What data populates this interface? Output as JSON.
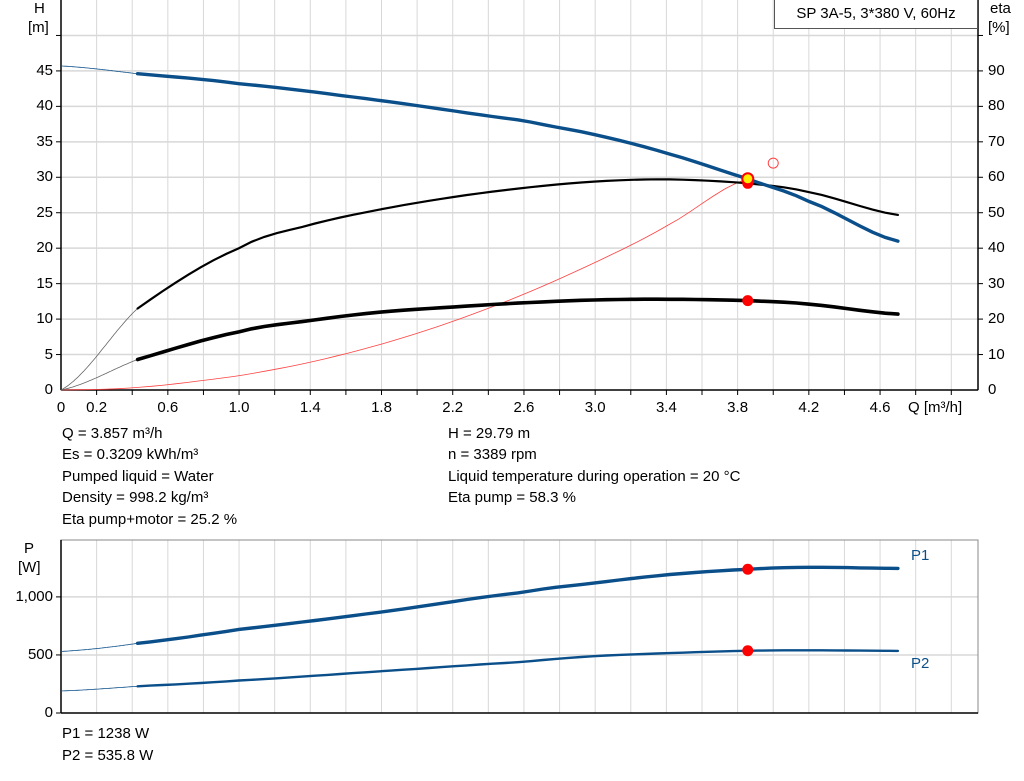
{
  "legend_label": "SP 3A-5, 3*380 V, 60Hz",
  "chart_data": [
    {
      "type": "line",
      "title": "",
      "xlabel": "Q [m³/h]",
      "ylabel_left": "H",
      "ylabel_left_unit": "[m]",
      "ylabel_right": "eta",
      "ylabel_right_unit": "[%]",
      "xlim": [
        0,
        5.15
      ],
      "ylim_left": [
        0,
        55
      ],
      "ylim_right": [
        0,
        110
      ],
      "grid": true,
      "x_tick_labels": [
        "0",
        "0.2",
        "0.6",
        "1.0",
        "1.4",
        "1.8",
        "2.2",
        "2.6",
        "3.0",
        "3.4",
        "3.8",
        "4.2",
        "4.6"
      ],
      "y_left_tick_labels": [
        "0",
        "5",
        "10",
        "15",
        "20",
        "25",
        "30",
        "35",
        "40",
        "45"
      ],
      "y_right_tick_labels": [
        "0",
        "10",
        "20",
        "30",
        "40",
        "50",
        "60",
        "70",
        "80",
        "90"
      ],
      "series": [
        {
          "id": "H",
          "axis": "left",
          "color": "#0b4f8a",
          "x": [
            0,
            0.43,
            1.0,
            1.8,
            2.6,
            3.0,
            3.4,
            3.857,
            4.2,
            4.7
          ],
          "y": [
            45.7,
            44.6,
            43.2,
            40.8,
            38.0,
            36.0,
            33.4,
            29.79,
            26.6,
            21.0
          ]
        },
        {
          "id": "eta_pump",
          "axis": "right",
          "color": "#000000",
          "x": [
            0,
            0.43,
            1.0,
            1.4,
            1.8,
            2.2,
            2.6,
            3.0,
            3.4,
            3.857,
            4.2,
            4.7
          ],
          "y": [
            0,
            23,
            40,
            46.6,
            51,
            54.4,
            57,
            58.8,
            59.4,
            58.3,
            55.8,
            49.4
          ]
        },
        {
          "id": "eta_total",
          "axis": "right",
          "color": "#000000",
          "x": [
            0,
            0.43,
            1.0,
            1.4,
            1.8,
            2.2,
            2.6,
            3.0,
            3.4,
            3.857,
            4.2,
            4.7
          ],
          "y": [
            0,
            8.6,
            16.4,
            19.6,
            22,
            23.4,
            24.6,
            25.4,
            25.6,
            25.2,
            24.2,
            21.4
          ]
        },
        {
          "id": "system",
          "axis": "left",
          "color": "#ff4040",
          "x": [
            0,
            0.43,
            1.0,
            1.4,
            1.8,
            2.2,
            2.6,
            3.0,
            3.4,
            3.857
          ],
          "y": [
            0,
            0.37,
            2.0,
            3.92,
            6.48,
            9.68,
            13.52,
            18.0,
            23.12,
            29.79
          ]
        }
      ],
      "duty_point": {
        "Q": 3.857,
        "H": 29.79,
        "eta_pump": 58.3,
        "eta_total": 25.2
      },
      "requested_point": {
        "Q": 4.0,
        "H": 32.0
      }
    },
    {
      "type": "line",
      "title": "",
      "ylabel": "P",
      "ylabel_unit": "[W]",
      "xlim": [
        0,
        5.15
      ],
      "ylim": [
        0,
        1490
      ],
      "grid": true,
      "y_tick_labels": [
        "0",
        "500",
        "1,000"
      ],
      "series": [
        {
          "name": "P1",
          "color": "#0b4f8a",
          "x": [
            0,
            0.43,
            1.0,
            1.8,
            2.6,
            3.0,
            3.4,
            3.857,
            4.2,
            4.7
          ],
          "y": [
            530,
            600,
            720,
            870,
            1040,
            1120,
            1190,
            1238,
            1255,
            1245
          ]
        },
        {
          "name": "P2",
          "color": "#0b4f8a",
          "x": [
            0,
            0.43,
            1.0,
            1.8,
            2.6,
            3.0,
            3.4,
            3.857,
            4.2,
            4.7
          ],
          "y": [
            190,
            230,
            280,
            360,
            440,
            490,
            515,
            535.8,
            540,
            535
          ]
        }
      ],
      "duty_point": {
        "Q": 3.857,
        "P1": 1238,
        "P2": 535.8
      }
    }
  ],
  "results": {
    "left": [
      "Q = 3.857 m³/h",
      "Es = 0.3209 kWh/m³",
      "Pumped liquid = Water",
      "Density = 998.2 kg/m³",
      "Eta pump+motor = 25.2 %"
    ],
    "right": [
      "H = 29.79 m",
      "n = 3389 rpm",
      "Liquid temperature during operation = 20 °C",
      "Eta pump = 58.3 %"
    ],
    "power": [
      "P1 = 1238 W",
      "P2 = 535.8 W"
    ]
  }
}
